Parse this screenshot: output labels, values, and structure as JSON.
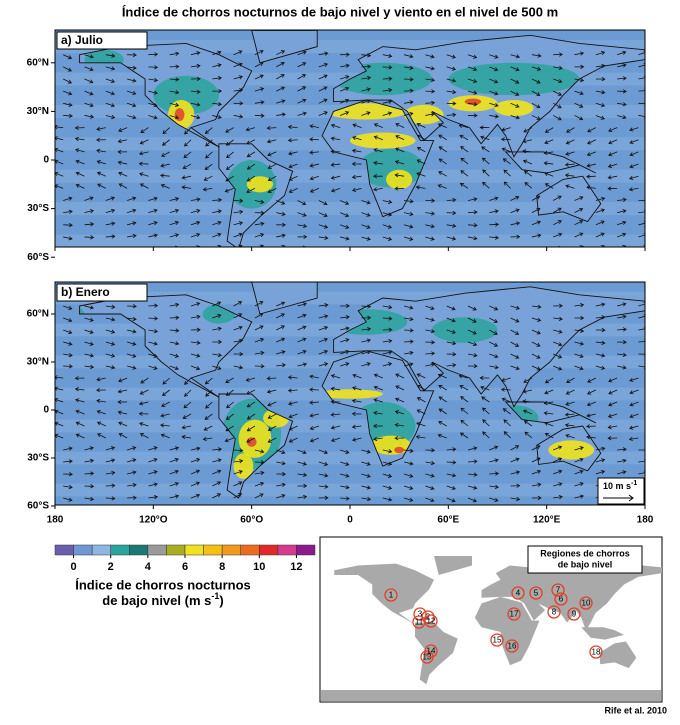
{
  "title": "Índice de chorros nocturnos de bajo nivel y viento en el nivel de 500 m",
  "panels": [
    {
      "label": "a) Julio"
    },
    {
      "label": "b) Enero"
    }
  ],
  "lat_ticks": [
    {
      "value": 60,
      "label": "60°N"
    },
    {
      "value": 30,
      "label": "30°N"
    },
    0,
    {
      "value": -30,
      "label": "30°S"
    },
    {
      "value": -60,
      "label": "60°S"
    }
  ],
  "lon_ticks": [
    {
      "value": -180,
      "label": "180"
    },
    {
      "value": -120,
      "label": "120°O"
    },
    {
      "value": -60,
      "label": "60°O"
    },
    0,
    {
      "value": 60,
      "label": "60°E"
    },
    {
      "value": 120,
      "label": "120°E"
    },
    {
      "value": 180,
      "label": "180"
    }
  ],
  "scale_arrow": {
    "label": "10 m s",
    "sup": "-1"
  },
  "colorbar": {
    "lim": [
      -1,
      13
    ],
    "ticks": [
      0,
      2,
      4,
      6,
      8,
      10,
      12
    ],
    "colors": [
      "#6a5fae",
      "#6e97d4",
      "#8fb6e3",
      "#2aa59b",
      "#1a7a73",
      "#9a9a9a",
      "#a9ad22",
      "#f0e21c",
      "#f6c012",
      "#f39a1c",
      "#ec6c1f",
      "#e02a2a",
      "#d43a8e",
      "#8b1a8c"
    ],
    "label_line1": "Índice de chorros nocturnos",
    "label_line2": "de bajo nivel (m s",
    "label_sup": "-1",
    "label_end": ")"
  },
  "regions_map": {
    "title_line1": "Regiones de chorros",
    "title_line2": "de bajo nivel",
    "regions": [
      "1",
      "2",
      "3",
      "4",
      "5",
      "6",
      "7",
      "8",
      "9",
      "10",
      "11",
      "12",
      "13",
      "14",
      "15",
      "16",
      "17",
      "18"
    ]
  },
  "credit": "Rife et al. 2010"
}
